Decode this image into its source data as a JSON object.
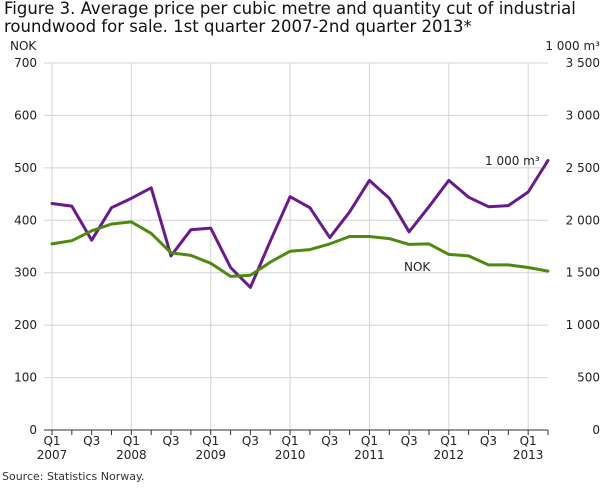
{
  "page": {
    "title": "Figure 3. Average price per cubic metre and quantity cut of industrial roundwood for sale. 1st quarter 2007-2nd quarter 2013*",
    "source": "Source: Statistics Norway."
  },
  "chart_data": {
    "type": "line",
    "left_axis_unit": "NOK",
    "right_axis_unit": "1 000 m³",
    "ylim_left": [
      0,
      700
    ],
    "yticks_left": [
      "0",
      "100",
      "200",
      "300",
      "400",
      "500",
      "600",
      "700"
    ],
    "ylim_right": [
      0,
      3500
    ],
    "yticks_right": [
      "0",
      "500",
      "1 000",
      "1 500",
      "2 000",
      "2 500",
      "3 000",
      "3 500"
    ],
    "x_tick_labels": [
      {
        "index": 0,
        "quarter": "Q1",
        "year": "2007"
      },
      {
        "index": 2,
        "quarter": "Q3",
        "year": ""
      },
      {
        "index": 4,
        "quarter": "Q1",
        "year": "2008"
      },
      {
        "index": 6,
        "quarter": "Q3",
        "year": ""
      },
      {
        "index": 8,
        "quarter": "Q1",
        "year": "2009"
      },
      {
        "index": 10,
        "quarter": "Q3",
        "year": ""
      },
      {
        "index": 12,
        "quarter": "Q1",
        "year": "2010"
      },
      {
        "index": 14,
        "quarter": "Q3",
        "year": ""
      },
      {
        "index": 16,
        "quarter": "Q1",
        "year": "2011"
      },
      {
        "index": 18,
        "quarter": "Q3",
        "year": ""
      },
      {
        "index": 20,
        "quarter": "Q1",
        "year": "2012"
      },
      {
        "index": 22,
        "quarter": "Q3",
        "year": ""
      },
      {
        "index": 24,
        "quarter": "Q1",
        "year": "2013"
      }
    ],
    "x": [
      "2007Q1",
      "2007Q2",
      "2007Q3",
      "2007Q4",
      "2008Q1",
      "2008Q2",
      "2008Q3",
      "2008Q4",
      "2009Q1",
      "2009Q2",
      "2009Q3",
      "2009Q4",
      "2010Q1",
      "2010Q2",
      "2010Q3",
      "2010Q4",
      "2011Q1",
      "2011Q2",
      "2011Q3",
      "2011Q4",
      "2012Q1",
      "2012Q2",
      "2012Q3",
      "2012Q4",
      "2013Q1",
      "2013Q2"
    ],
    "series": [
      {
        "name": "1 000 m³",
        "axis": "right",
        "color": "#6a1b8a",
        "values": [
          2160,
          2135,
          1810,
          2120,
          2210,
          2310,
          1660,
          1910,
          1925,
          1550,
          1360,
          1800,
          2225,
          2120,
          1835,
          2080,
          2380,
          2210,
          1890,
          2130,
          2380,
          2220,
          2130,
          2140,
          2270,
          2570
        ]
      },
      {
        "name": "NOK",
        "axis": "left",
        "color": "#4f8a10",
        "values": [
          355,
          361,
          380,
          393,
          397,
          375,
          338,
          333,
          318,
          293,
          295,
          320,
          341,
          344,
          355,
          369,
          369,
          365,
          354,
          355,
          335,
          332,
          315,
          315,
          310,
          303
        ]
      }
    ],
    "grid": true
  }
}
